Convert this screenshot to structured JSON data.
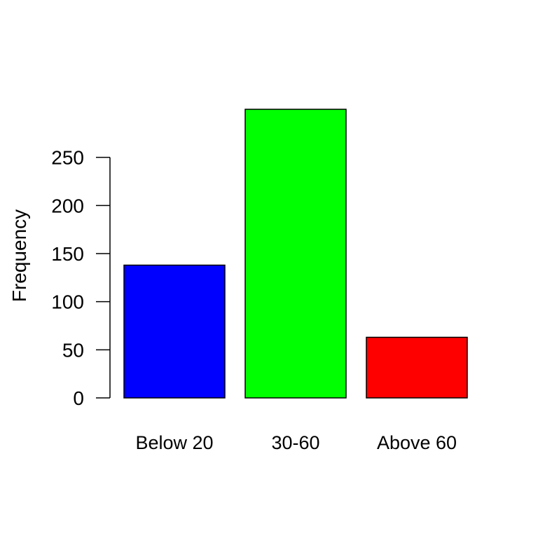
{
  "chart_data": {
    "type": "bar",
    "title": "",
    "xlabel": "",
    "ylabel": "Frequency",
    "categories": [
      "Below 20",
      "30-60",
      "Above 60"
    ],
    "values": [
      138,
      300,
      63
    ],
    "colors": [
      "#0000ff",
      "#00ff00",
      "#ff0000"
    ],
    "ylim": [
      0,
      300
    ],
    "yticks": [
      0,
      50,
      100,
      150,
      200,
      250
    ],
    "grid": false,
    "legend": "none"
  }
}
